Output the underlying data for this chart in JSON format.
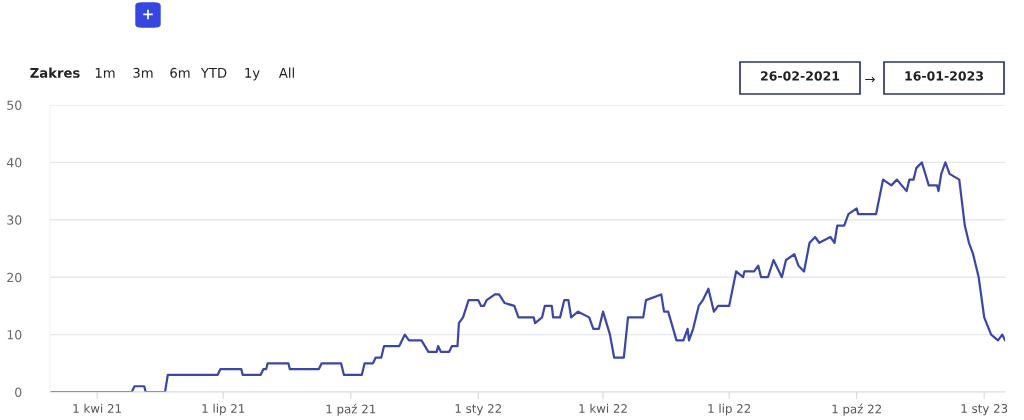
{
  "chart_data": {
    "type": "line",
    "annotations": [
      "+",
      "Zakres",
      "1m",
      "3m",
      "6m",
      "YTD",
      "1y",
      "All",
      "26-02-2021",
      "→",
      "16-01-2023"
    ],
    "x": [
      "2021-02-26",
      "2021-04-26",
      "2021-04-28",
      "2021-05-05",
      "2021-05-06",
      "2021-05-20",
      "2021-05-22",
      "2021-06-27",
      "2021-06-29",
      "2021-07-14",
      "2021-07-15",
      "2021-07-28",
      "2021-07-30",
      "2021-08-01",
      "2021-08-02",
      "2021-08-17",
      "2021-08-18",
      "2021-09-08",
      "2021-09-10",
      "2021-09-24",
      "2021-09-26",
      "2021-10-09",
      "2021-10-11",
      "2021-10-17",
      "2021-10-19",
      "2021-10-23",
      "2021-10-25",
      "2021-11-05",
      "2021-11-09",
      "2021-11-12",
      "2021-11-21",
      "2021-11-26",
      "2021-12-02",
      "2021-12-03",
      "2021-12-05",
      "2021-12-11",
      "2021-12-13",
      "2021-12-17",
      "2021-12-18",
      "2021-12-21",
      "2021-12-25",
      "2022-01-01",
      "2022-01-03",
      "2022-01-05",
      "2022-01-07",
      "2022-01-13",
      "2022-01-16",
      "2022-01-20",
      "2022-01-27",
      "2022-01-30",
      "2022-02-10",
      "2022-02-11",
      "2022-02-16",
      "2022-02-18",
      "2022-02-23",
      "2022-02-24",
      "2022-03-01",
      "2022-03-04",
      "2022-03-07",
      "2022-03-09",
      "2022-03-14",
      "2022-03-22",
      "2022-03-25",
      "2022-03-29",
      "2022-04-01",
      "2022-04-06",
      "2022-04-09",
      "2022-04-16",
      "2022-04-19",
      "2022-04-30",
      "2022-05-02",
      "2022-05-13",
      "2022-05-15",
      "2022-05-18",
      "2022-05-24",
      "2022-05-29",
      "2022-06-01",
      "2022-06-02",
      "2022-06-05",
      "2022-06-09",
      "2022-06-12",
      "2022-06-16",
      "2022-06-20",
      "2022-06-23",
      "2022-07-01",
      "2022-07-06",
      "2022-07-11",
      "2022-07-12",
      "2022-07-19",
      "2022-07-22",
      "2022-07-24",
      "2022-07-29",
      "2022-08-02",
      "2022-08-08",
      "2022-08-11",
      "2022-08-17",
      "2022-08-20",
      "2022-08-24",
      "2022-08-28",
      "2022-09-01",
      "2022-09-04",
      "2022-09-12",
      "2022-09-15",
      "2022-09-17",
      "2022-09-22",
      "2022-09-25",
      "2022-10-01",
      "2022-10-02",
      "2022-10-15",
      "2022-10-20",
      "2022-10-26",
      "2022-10-30",
      "2022-11-06",
      "2022-11-08",
      "2022-11-11",
      "2022-11-13",
      "2022-11-17",
      "2022-11-22",
      "2022-11-28",
      "2022-11-29",
      "2022-12-01",
      "2022-12-04",
      "2022-12-07",
      "2022-12-14",
      "2022-12-18",
      "2022-12-21",
      "2022-12-24",
      "2022-12-28",
      "2023-01-01",
      "2023-01-06",
      "2023-01-11",
      "2023-01-14",
      "2023-01-16"
    ],
    "series": [
      {
        "color": "#3b47a8",
        "values": [
          0,
          0,
          1,
          1,
          0,
          0,
          3,
          3,
          4,
          4,
          3,
          3,
          4,
          4,
          5,
          5,
          4,
          4,
          5,
          5,
          3,
          3,
          5,
          5,
          6,
          6,
          8,
          8,
          10,
          9,
          9,
          7,
          7,
          8,
          7,
          7,
          8,
          8,
          12,
          13,
          16,
          16,
          15,
          15,
          16,
          17,
          17,
          15.5,
          15,
          13,
          13,
          12,
          13,
          15,
          15,
          13,
          13,
          16,
          16,
          13,
          14,
          13,
          11,
          11,
          14,
          10,
          6,
          6,
          13,
          13,
          16,
          17,
          14,
          14,
          9,
          9,
          11,
          9,
          11,
          15,
          16,
          18,
          14,
          15,
          15,
          21,
          20,
          21,
          21,
          22,
          20,
          20,
          23,
          20,
          23,
          24,
          22,
          21,
          26,
          27,
          26,
          27,
          26,
          29,
          29,
          31,
          32,
          31,
          31,
          37,
          36,
          37,
          35,
          37,
          37,
          39,
          40,
          36,
          36,
          35,
          38,
          40,
          38,
          37,
          29,
          26,
          24,
          20,
          13,
          10,
          9,
          10,
          9
        ]
      }
    ],
    "xlim": [
      "2021-02-26",
      "2023-01-16"
    ],
    "xticks": [
      {
        "value": "2021-04-01",
        "label": "1 kwi 21"
      },
      {
        "value": "2021-07-01",
        "label": "1 lip 21"
      },
      {
        "value": "2021-10-01",
        "label": "1 paź 21"
      },
      {
        "value": "2022-01-01",
        "label": "1 sty 22"
      },
      {
        "value": "2022-04-01",
        "label": "1 kwi 22"
      },
      {
        "value": "2022-07-01",
        "label": "1 lip 22"
      },
      {
        "value": "2022-10-01",
        "label": "1 paź 22"
      },
      {
        "value": "2023-01-01",
        "label": "1 sty 23"
      }
    ],
    "ylim": [
      0,
      50
    ],
    "yticks": [
      0,
      10,
      20,
      30,
      40,
      50
    ],
    "grid": "y",
    "legend": false,
    "marker": "none",
    "line_style": "solid"
  }
}
